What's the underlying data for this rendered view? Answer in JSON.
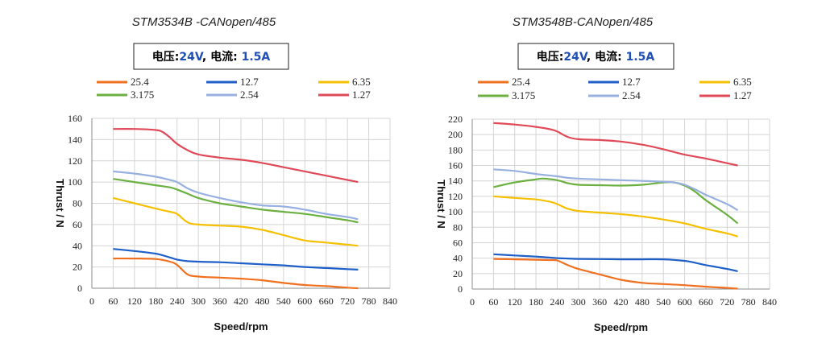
{
  "chart_data": [
    {
      "type": "line",
      "title": "STM3534B -CANopen/485",
      "condition": {
        "voltage_label": "电压:",
        "voltage": "24V",
        "sep": ",",
        "current_label": "电流:",
        "current": "1.5A"
      },
      "xlabel": "Speed/rpm",
      "ylabel": "Thrust / N",
      "xlim": [
        0,
        840
      ],
      "ylim": [
        0,
        160
      ],
      "xticks": [
        0,
        60,
        120,
        180,
        240,
        300,
        360,
        420,
        480,
        540,
        600,
        660,
        720,
        780,
        840
      ],
      "yticks": [
        0,
        20,
        40,
        60,
        80,
        100,
        120,
        140,
        160
      ],
      "grid": true,
      "legend_position": "top",
      "series": [
        {
          "name": "25.4",
          "color": "#f07020",
          "x": [
            60,
            120,
            180,
            220,
            240,
            270,
            300,
            360,
            420,
            480,
            540,
            600,
            660,
            720,
            750
          ],
          "y": [
            28,
            28,
            27.5,
            25,
            22,
            13,
            11,
            10,
            9,
            7.5,
            5,
            3,
            2,
            0.5,
            0
          ]
        },
        {
          "name": "12.7",
          "color": "#1f5fc8",
          "x": [
            60,
            120,
            180,
            220,
            240,
            270,
            300,
            360,
            420,
            480,
            540,
            600,
            660,
            720,
            750
          ],
          "y": [
            37,
            35,
            32.5,
            29,
            27,
            25.5,
            25,
            24.5,
            23.5,
            22.5,
            21.5,
            20,
            19,
            18,
            17.5
          ]
        },
        {
          "name": "6.35",
          "color": "#f5c000",
          "x": [
            60,
            120,
            180,
            220,
            240,
            270,
            300,
            360,
            420,
            480,
            540,
            600,
            660,
            720,
            750
          ],
          "y": [
            85,
            80,
            75,
            72,
            70,
            62,
            60,
            59,
            58,
            55,
            50,
            45,
            43,
            41,
            40
          ]
        },
        {
          "name": "3.175",
          "color": "#6bb040",
          "x": [
            60,
            120,
            180,
            220,
            240,
            270,
            300,
            360,
            420,
            480,
            540,
            600,
            660,
            720,
            750
          ],
          "y": [
            103,
            100,
            97,
            95,
            93,
            89,
            85,
            80,
            77,
            74,
            72,
            70,
            67,
            64,
            62
          ]
        },
        {
          "name": "2.54",
          "color": "#98b0e0",
          "x": [
            60,
            120,
            180,
            220,
            240,
            270,
            300,
            360,
            420,
            480,
            540,
            600,
            660,
            720,
            750
          ],
          "y": [
            110,
            108,
            105,
            102,
            100,
            94,
            90,
            85,
            81,
            78,
            77,
            74,
            70,
            67,
            65
          ]
        },
        {
          "name": "1.27",
          "color": "#e04a58",
          "x": [
            60,
            120,
            180,
            200,
            220,
            240,
            270,
            300,
            360,
            420,
            480,
            540,
            600,
            660,
            720,
            750
          ],
          "y": [
            150,
            150,
            149,
            147,
            142,
            136,
            130,
            126,
            123,
            121,
            118,
            114,
            110,
            106,
            102,
            100
          ]
        }
      ]
    },
    {
      "type": "line",
      "title": "STM3548B-CANopen/485",
      "condition": {
        "voltage_label": "电压:",
        "voltage": "24V",
        "sep": ",",
        "current_label": "电流:",
        "current": "1.5A"
      },
      "xlabel": "Speed/rpm",
      "ylabel": "Thrust / N",
      "xlim": [
        0,
        840
      ],
      "ylim": [
        0,
        220
      ],
      "xticks": [
        0,
        60,
        120,
        180,
        240,
        300,
        360,
        420,
        480,
        540,
        600,
        660,
        720,
        780,
        840
      ],
      "yticks": [
        0,
        20,
        40,
        60,
        80,
        100,
        120,
        140,
        160,
        180,
        200,
        220
      ],
      "grid": true,
      "legend_position": "top",
      "series": [
        {
          "name": "25.4",
          "color": "#f07020",
          "x": [
            60,
            120,
            180,
            220,
            240,
            270,
            300,
            360,
            420,
            480,
            540,
            600,
            660,
            720,
            750
          ],
          "y": [
            39,
            38.5,
            38,
            37.5,
            37,
            31,
            26,
            19,
            12,
            8,
            6.5,
            5,
            3,
            1.5,
            0.5
          ]
        },
        {
          "name": "12.7",
          "color": "#1f5fc8",
          "x": [
            60,
            120,
            180,
            240,
            270,
            300,
            360,
            420,
            480,
            540,
            600,
            630,
            660,
            720,
            750
          ],
          "y": [
            45,
            43.5,
            42,
            40,
            39.5,
            39,
            38.8,
            38.5,
            38.5,
            38.5,
            36.5,
            34,
            31,
            26,
            23
          ]
        },
        {
          "name": "6.35",
          "color": "#f5c000",
          "x": [
            60,
            120,
            180,
            220,
            240,
            270,
            300,
            360,
            420,
            480,
            540,
            600,
            660,
            720,
            750
          ],
          "y": [
            120,
            118,
            116,
            113,
            110,
            104,
            101,
            99,
            97,
            94,
            90,
            85,
            78,
            72,
            68
          ]
        },
        {
          "name": "3.175",
          "color": "#6bb040",
          "x": [
            60,
            120,
            180,
            200,
            240,
            270,
            300,
            360,
            420,
            480,
            540,
            570,
            600,
            630,
            660,
            720,
            750
          ],
          "y": [
            132,
            138,
            142,
            143,
            141,
            137,
            135,
            134.5,
            134,
            135,
            138,
            138,
            134,
            126,
            115,
            96,
            85
          ]
        },
        {
          "name": "2.54",
          "color": "#98b0e0",
          "x": [
            60,
            120,
            180,
            240,
            270,
            300,
            360,
            420,
            480,
            540,
            570,
            600,
            630,
            660,
            720,
            750
          ],
          "y": [
            155,
            153,
            149,
            146,
            144,
            143,
            142,
            141,
            140,
            139,
            138,
            135,
            129,
            122,
            110,
            102
          ]
        },
        {
          "name": "1.27",
          "color": "#e04a58",
          "x": [
            60,
            120,
            180,
            220,
            240,
            270,
            300,
            360,
            420,
            480,
            540,
            600,
            660,
            720,
            750
          ],
          "y": [
            215,
            213,
            210,
            207,
            204,
            197,
            194,
            193,
            191,
            187,
            181,
            174,
            169,
            163,
            160
          ]
        }
      ]
    }
  ]
}
